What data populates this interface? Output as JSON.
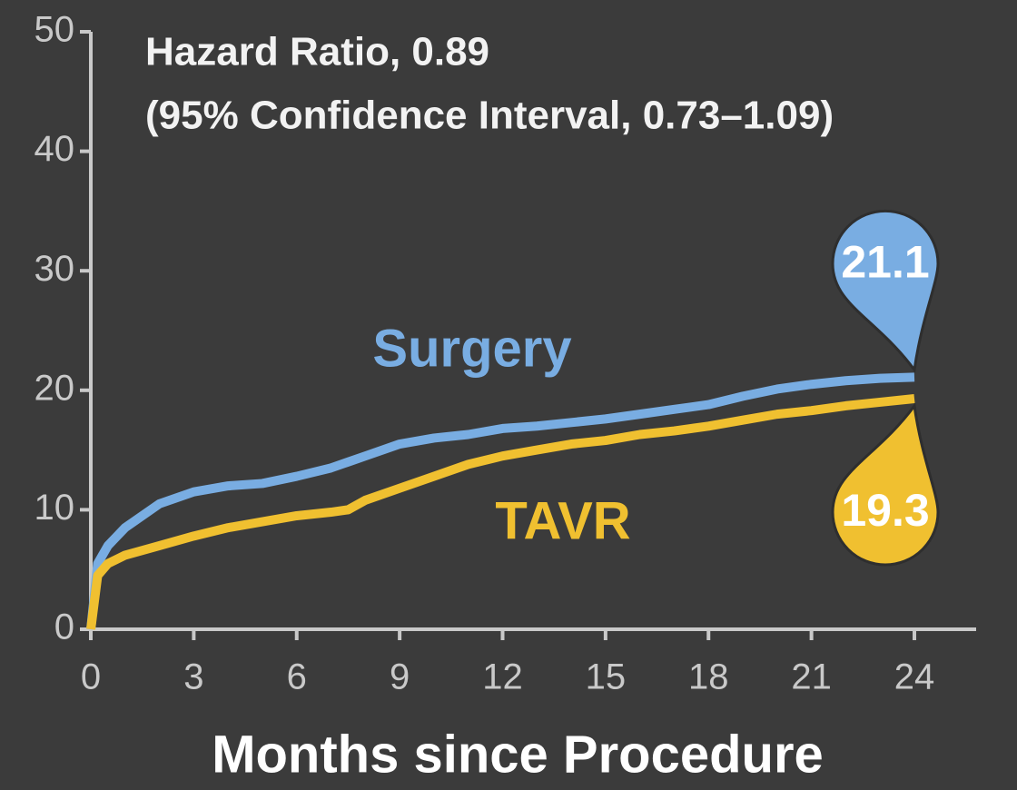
{
  "chart_data": {
    "type": "line",
    "annotations": [
      "Hazard Ratio, 0.89",
      "(95% Confidence Interval, 0.73–1.09)"
    ],
    "x_label": "Months since Procedure",
    "xlim": [
      0,
      24
    ],
    "xticks": [
      0,
      3,
      6,
      9,
      12,
      15,
      18,
      21,
      24
    ],
    "ylim": [
      0,
      50
    ],
    "yticks": [
      0,
      10,
      20,
      30,
      40,
      50
    ],
    "x": [
      0,
      0.2,
      0.5,
      1,
      2,
      3,
      4,
      5,
      6,
      7,
      7.5,
      8,
      9,
      10,
      11,
      12,
      13,
      14,
      15,
      16,
      17,
      18,
      19,
      20,
      21,
      22,
      23,
      24
    ],
    "series": [
      {
        "name": "Surgery",
        "color": "#79ade2",
        "values": [
          0,
          5.5,
          7,
          8.5,
          10.5,
          11.5,
          12,
          12.2,
          12.8,
          13.5,
          14,
          14.5,
          15.5,
          16,
          16.3,
          16.8,
          17,
          17.3,
          17.6,
          18,
          18.4,
          18.8,
          19.5,
          20.1,
          20.5,
          20.8,
          21,
          21.1
        ]
      },
      {
        "name": "TAVR",
        "color": "#f0c030",
        "values": [
          0,
          4.5,
          5.5,
          6.2,
          7,
          7.8,
          8.5,
          9,
          9.5,
          9.8,
          10,
          10.8,
          11.8,
          12.8,
          13.8,
          14.5,
          15,
          15.5,
          15.8,
          16.3,
          16.6,
          17,
          17.5,
          18,
          18.3,
          18.7,
          19,
          19.3
        ]
      }
    ]
  }
}
